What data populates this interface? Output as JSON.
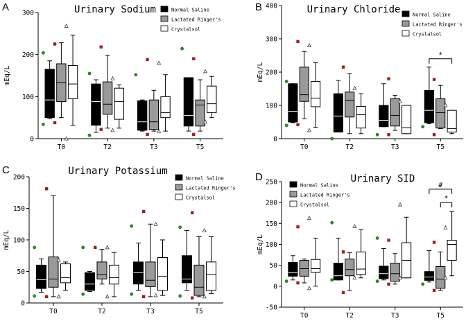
{
  "figure": {
    "panel_letters": [
      "A",
      "B",
      "C",
      "D"
    ]
  },
  "style": {
    "group_colors": [
      "#000000",
      "#9a9a9a",
      "#ffffff"
    ],
    "outlier_colors": [
      "#2e8b2e",
      "#a31c1c",
      "#3a3a3a"
    ],
    "outlier_markers": [
      "circle",
      "square",
      "triangle"
    ]
  },
  "chart_data": [
    {
      "type": "box",
      "panel": "A",
      "title": "Urinary Sodium",
      "xlabel": "",
      "ylabel": "mEq/L",
      "ylim": [
        0,
        300
      ],
      "yticks": [
        "0",
        "100",
        "200",
        "300"
      ],
      "categories": [
        "T0",
        "T2",
        "T3",
        "T5"
      ],
      "legend": [
        "Normal Saline",
        "Lactated Ringer's",
        "Crystalsol"
      ],
      "legend_position": "top-right",
      "series": [
        {
          "name": "Normal Saline",
          "boxes": [
            {
              "min": 48,
              "q1": 50,
              "median": 92,
              "q3": 165,
              "max": 185,
              "outliers": [
                204,
                34
              ]
            },
            {
              "min": 15,
              "q1": 32,
              "median": 88,
              "q3": 130,
              "max": 140,
              "outliers": [
                155,
                8
              ]
            },
            {
              "min": 18,
              "q1": 20,
              "median": 40,
              "q3": 90,
              "max": 92,
              "outliers": [
                152
              ]
            },
            {
              "min": 18,
              "q1": 30,
              "median": 55,
              "q3": 145,
              "max": 145,
              "outliers": [
                214
              ]
            }
          ]
        },
        {
          "name": "Lactated Ringer's",
          "boxes": [
            {
              "min": 50,
              "q1": 88,
              "median": 133,
              "q3": 178,
              "max": 228,
              "outliers": [
                225,
                38
              ]
            },
            {
              "min": 25,
              "q1": 58,
              "median": 82,
              "q3": 135,
              "max": 198,
              "outliers": [
                218,
                22
              ]
            },
            {
              "min": 18,
              "q1": 22,
              "median": 40,
              "q3": 92,
              "max": 115,
              "outliers": [
                188,
                10
              ]
            },
            {
              "min": 18,
              "q1": 30,
              "median": 80,
              "q3": 92,
              "max": 140,
              "outliers": [
                190,
                10
              ]
            }
          ]
        },
        {
          "name": "Crystalsol",
          "boxes": [
            {
              "min": 32,
              "q1": 95,
              "median": 130,
              "q3": 174,
              "max": 246,
              "outliers": [
                268,
                0
              ]
            },
            {
              "min": 25,
              "q1": 46,
              "median": 88,
              "q3": 120,
              "max": 128,
              "outliers": [
                143,
                20
              ]
            },
            {
              "min": 18,
              "q1": 50,
              "median": 62,
              "q3": 100,
              "max": 152,
              "outliers": [
                180,
                18
              ]
            },
            {
              "min": 50,
              "q1": 62,
              "median": 83,
              "q3": 125,
              "max": 148,
              "outliers": [
                160,
                40
              ]
            }
          ]
        }
      ],
      "annotations": []
    },
    {
      "type": "box",
      "panel": "B",
      "title": "Urinary Chloride",
      "xlabel": "",
      "ylabel": "mEq/L",
      "ylim": [
        0,
        400
      ],
      "yticks": [
        "0",
        "100",
        "200",
        "300",
        "400"
      ],
      "categories": [
        "T0",
        "T2",
        "T3",
        "T5"
      ],
      "legend": [
        "Normal Saline",
        "Lactated Ringer's",
        "Crystalsol"
      ],
      "legend_position": "top-right",
      "series": [
        {
          "name": "Normal Saline",
          "boxes": [
            {
              "min": 48,
              "q1": 50,
              "median": 82,
              "q3": 165,
              "max": 165,
              "outliers": [
                172,
                40
              ]
            },
            {
              "min": 20,
              "q1": 20,
              "median": 68,
              "q3": 135,
              "max": 175,
              "outliers": [
                0
              ]
            },
            {
              "min": 36,
              "q1": 36,
              "median": 55,
              "q3": 100,
              "max": 165,
              "outliers": [
                12
              ]
            },
            {
              "min": 45,
              "q1": 48,
              "median": 85,
              "q3": 145,
              "max": 215,
              "outliers": [
                36
              ]
            }
          ]
        },
        {
          "name": "Lactated Ringer's",
          "boxes": [
            {
              "min": 60,
              "q1": 112,
              "median": 132,
              "q3": 215,
              "max": 262,
              "outliers": [
                292,
                42
              ]
            },
            {
              "min": 15,
              "q1": 65,
              "median": 115,
              "q3": 140,
              "max": 195,
              "outliers": [
                215
              ]
            },
            {
              "min": 25,
              "q1": 38,
              "median": 70,
              "q3": 120,
              "max": 130,
              "outliers": [
                180,
                12
              ]
            },
            {
              "min": 30,
              "q1": 32,
              "median": 78,
              "q3": 120,
              "max": 160,
              "outliers": [
                178,
                12
              ]
            }
          ]
        },
        {
          "name": "Crystalsol",
          "boxes": [
            {
              "min": 34,
              "q1": 96,
              "median": 122,
              "q3": 172,
              "max": 228,
              "outliers": [
                280,
                25
              ]
            },
            {
              "min": 15,
              "q1": 32,
              "median": 72,
              "q3": 97,
              "max": 135,
              "outliers": [
                152
              ]
            },
            {
              "min": 15,
              "q1": 15,
              "median": 33,
              "q3": 100,
              "max": 100,
              "outliers": [
                112
              ]
            },
            {
              "min": 15,
              "q1": 20,
              "median": 30,
              "q3": 85,
              "max": 85,
              "outliers": [
                100
              ]
            }
          ]
        }
      ],
      "annotations": [
        {
          "label": "*",
          "category": "T5",
          "from_series": 0,
          "to_series": 2,
          "y": 240
        }
      ]
    },
    {
      "type": "box",
      "panel": "C",
      "title": "Urinary Potassium",
      "xlabel": "",
      "ylabel": "mEq/L",
      "ylim": [
        0,
        200
      ],
      "yticks": [
        "0",
        "50",
        "100",
        "150",
        "200"
      ],
      "categories": [
        "T0",
        "T2",
        "T3",
        "T5"
      ],
      "legend": [
        "Normal Saline",
        "Lactated Ringer's",
        "Crystalsol"
      ],
      "legend_position": "top-right",
      "series": [
        {
          "name": "Normal Saline",
          "boxes": [
            {
              "min": 17,
              "q1": 23,
              "median": 37,
              "q3": 60,
              "max": 70,
              "outliers": [
                88,
                11
              ]
            },
            {
              "min": 18,
              "q1": 20,
              "median": 30,
              "q3": 48,
              "max": 50,
              "outliers": [
                88,
                14
              ]
            },
            {
              "min": 20,
              "q1": 30,
              "median": 48,
              "q3": 65,
              "max": 95,
              "outliers": [
                122,
                14
              ]
            },
            {
              "min": 20,
              "q1": 32,
              "median": 38,
              "q3": 75,
              "max": 115,
              "outliers": [
                120,
                11
              ]
            }
          ]
        },
        {
          "name": "Lactated Ringer's",
          "boxes": [
            {
              "min": 10,
              "q1": 25,
              "median": 38,
              "q3": 73,
              "max": 170,
              "outliers": [
                181,
                10
              ]
            },
            {
              "min": 30,
              "q1": 38,
              "median": 45,
              "q3": 65,
              "max": 85,
              "outliers": [
                88
              ]
            },
            {
              "min": 10,
              "q1": 26,
              "median": 36,
              "q3": 65,
              "max": 125,
              "outliers": [
                145,
                10
              ]
            },
            {
              "min": 10,
              "q1": 12,
              "median": 25,
              "q3": 60,
              "max": 105,
              "outliers": [
                143,
                8
              ]
            }
          ]
        },
        {
          "name": "Crystalsol",
          "boxes": [
            {
              "min": 20,
              "q1": 32,
              "median": 40,
              "q3": 62,
              "max": 65,
              "outliers": [
                68,
                10
              ]
            },
            {
              "min": 10,
              "q1": 30,
              "median": 40,
              "q3": 60,
              "max": 80,
              "outliers": [
                88,
                10
              ]
            },
            {
              "min": 12,
              "q1": 20,
              "median": 42,
              "q3": 72,
              "max": 100,
              "outliers": [
                125,
                12
              ]
            },
            {
              "min": 15,
              "q1": 20,
              "median": 45,
              "q3": 65,
              "max": 105,
              "outliers": [
                115,
                10
              ]
            }
          ]
        }
      ],
      "annotations": []
    },
    {
      "type": "box",
      "panel": "D",
      "title": "Urinary SID",
      "xlabel": "",
      "ylabel": "mEq/L",
      "ylim": [
        -50,
        250
      ],
      "yticks": [
        "-50",
        "0",
        "50",
        "100",
        "150",
        "200",
        "250"
      ],
      "categories": [
        "T0",
        "T2",
        "T3",
        "T5"
      ],
      "legend": [
        "Normal Saline",
        "Lactated Ringer's",
        "Crystalsol"
      ],
      "legend_position": "top-left",
      "series": [
        {
          "name": "Normal Saline",
          "boxes": [
            {
              "min": 15,
              "q1": 24,
              "median": 32,
              "q3": 57,
              "max": 73,
              "outliers": [
                12
              ]
            },
            {
              "min": 15,
              "q1": 15,
              "median": 25,
              "q3": 55,
              "max": 115,
              "outliers": [
                152,
                15
              ]
            },
            {
              "min": 15,
              "q1": 18,
              "median": 30,
              "q3": 48,
              "max": 90,
              "outliers": [
                115,
                12
              ]
            },
            {
              "min": 10,
              "q1": 14,
              "median": 22,
              "q3": 35,
              "max": 85,
              "outliers": [
                5
              ]
            }
          ]
        },
        {
          "name": "Lactated Ringer's",
          "boxes": [
            {
              "min": 8,
              "q1": 24,
              "median": 42,
              "q3": 62,
              "max": 65,
              "outliers": [
                142,
                8
              ]
            },
            {
              "min": -10,
              "q1": 25,
              "median": 40,
              "q3": 65,
              "max": 80,
              "outliers": [
                -15,
                82
              ]
            },
            {
              "min": 5,
              "q1": 12,
              "median": 30,
              "q3": 55,
              "max": 78,
              "outliers": [
                110,
                5
              ]
            },
            {
              "min": -10,
              "q1": -5,
              "median": 17,
              "q3": 47,
              "max": 82,
              "outliers": [
                105,
                -10
              ]
            }
          ]
        },
        {
          "name": "Crystalsol",
          "boxes": [
            {
              "min": 0,
              "q1": 33,
              "median": 42,
              "q3": 64,
              "max": 115,
              "outliers": [
                163,
                -5
              ]
            },
            {
              "min": 20,
              "q1": 28,
              "median": 41,
              "q3": 82,
              "max": 135,
              "outliers": [
                143,
                20
              ]
            },
            {
              "min": 20,
              "q1": 20,
              "median": 62,
              "q3": 104,
              "max": 165,
              "outliers": [
                195,
                20
              ]
            },
            {
              "min": 25,
              "q1": 62,
              "median": 100,
              "q3": 110,
              "max": 178,
              "outliers": [
                140,
                20
              ]
            }
          ]
        }
      ],
      "annotations": [
        {
          "label": "#",
          "category": "T5",
          "from_series": 0,
          "to_series": 2,
          "y": 232
        },
        {
          "label": "*",
          "category": "T5",
          "from_series": 1,
          "to_series": 2,
          "y": 200
        }
      ]
    }
  ]
}
